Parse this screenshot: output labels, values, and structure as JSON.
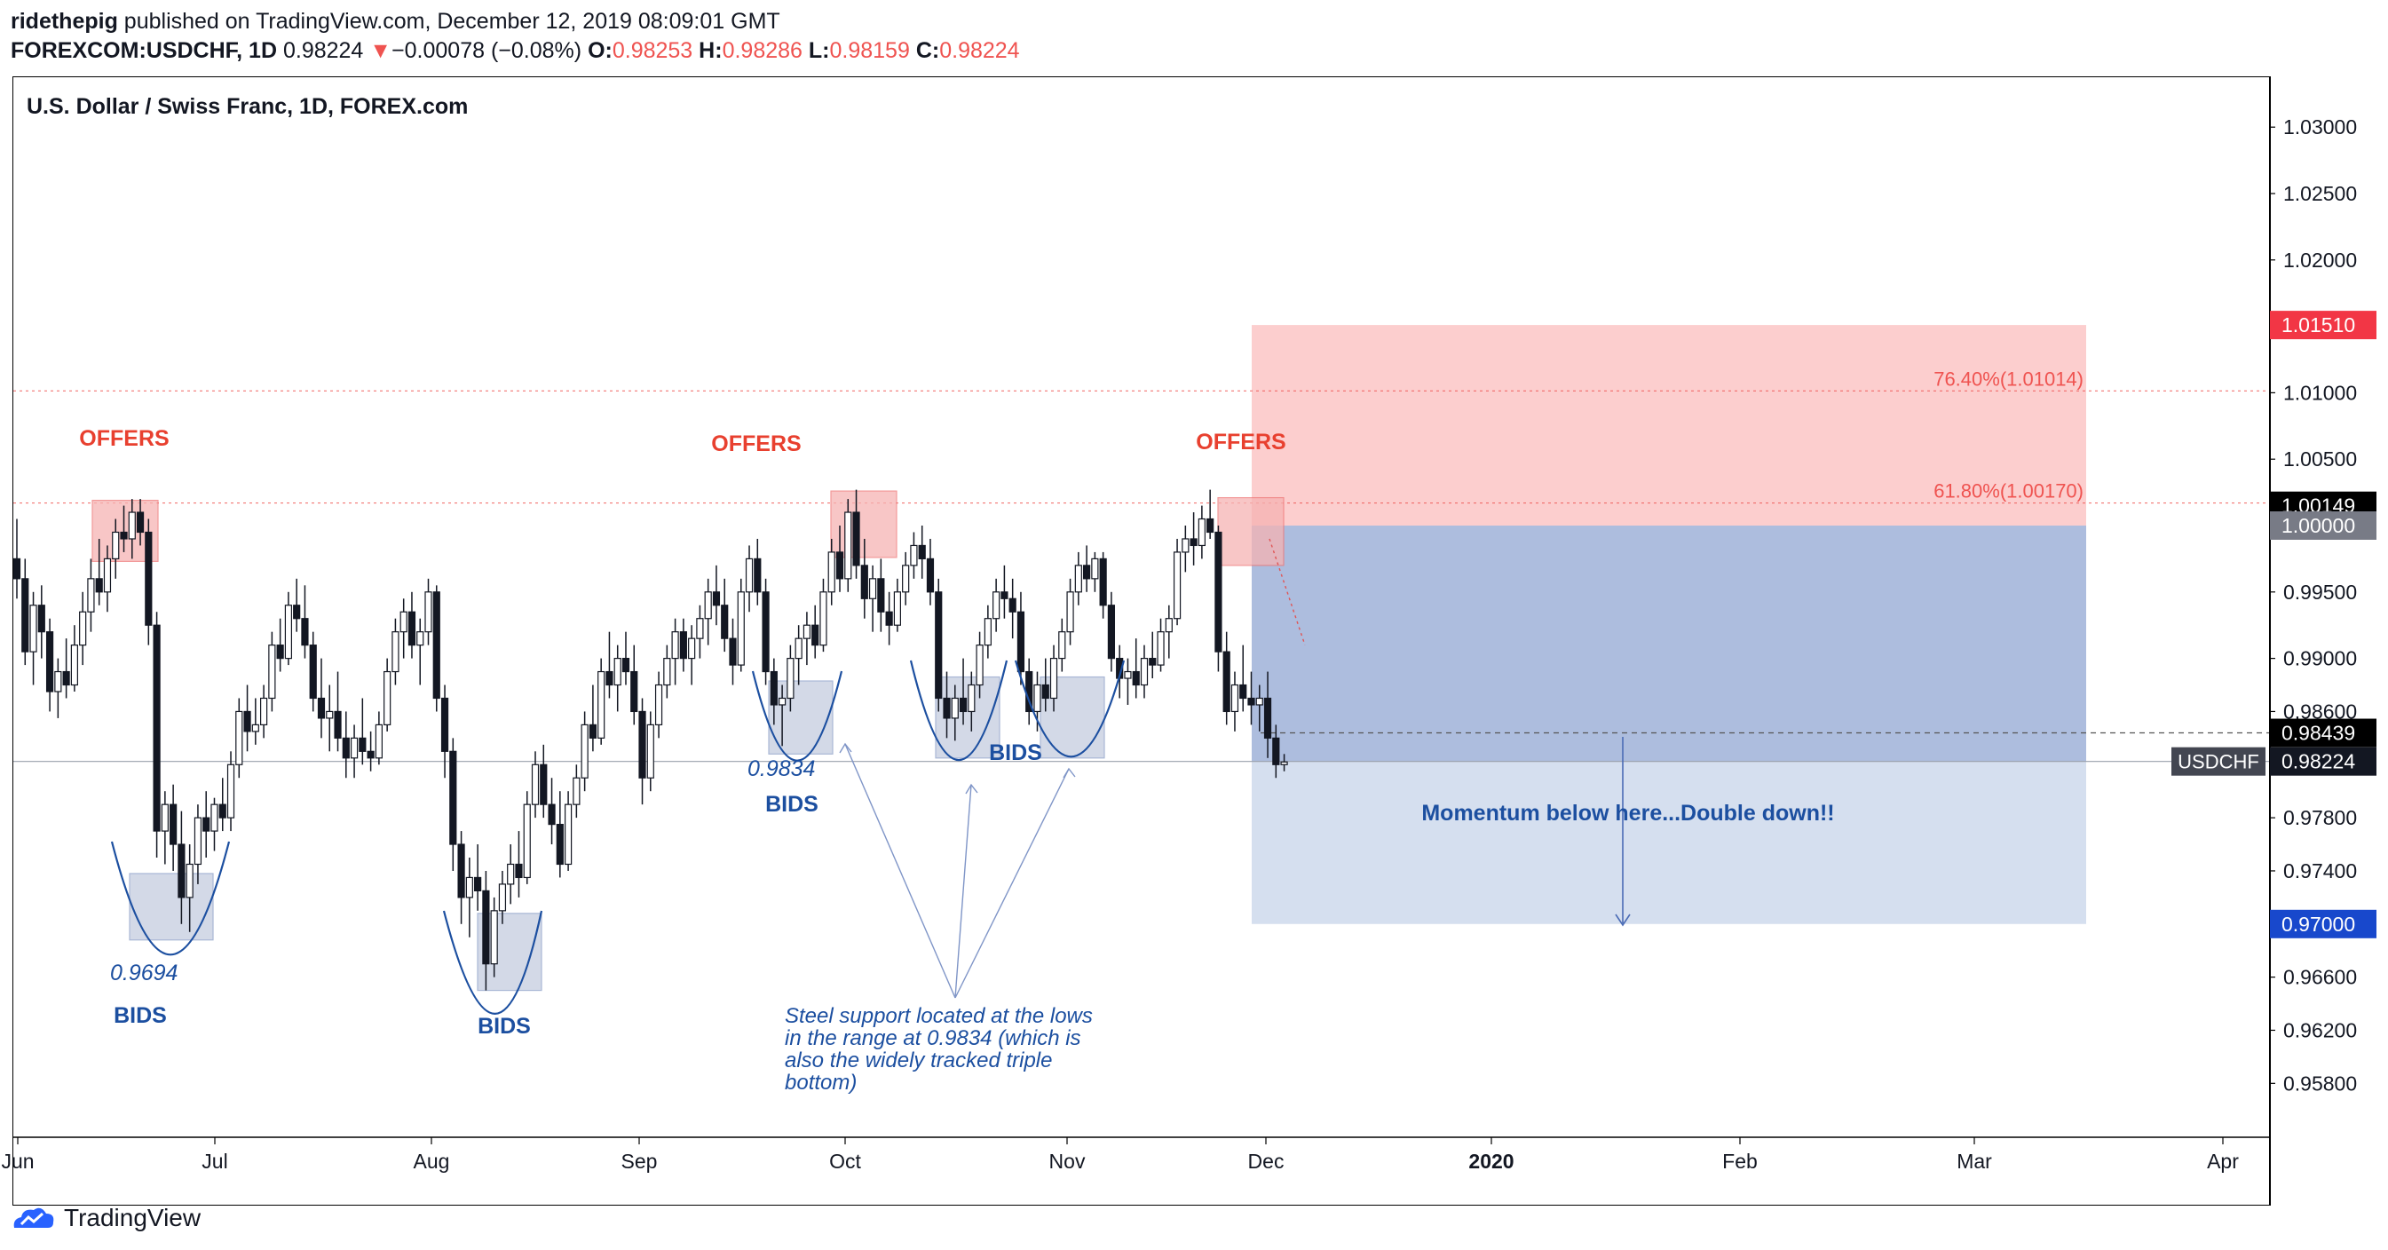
{
  "header": {
    "author": "ridethepig",
    "published_text": "published on TradingView.com, December 12, 2019 08:09:01 GMT",
    "symbol": "FOREXCOM:USDCHF, 1D",
    "last": "0.98224",
    "change_arrow": "▼",
    "change": "−0.00078 (−0.08%)",
    "o_label": "O:",
    "o": "0.98253",
    "h_label": "H:",
    "h": "0.98286",
    "l_label": "L:",
    "l": "0.98159",
    "c_label": "C:",
    "c": "0.98224"
  },
  "footer": {
    "brand": "TradingView"
  },
  "colors": {
    "down": "#ef5350",
    "red_zone": "#fbc5c5",
    "blue_zone": "#a9b9dc",
    "light_blue_zone": "#d3ddee",
    "annotation_blue": "#1c4fa0",
    "annotation_red": "#e8402f",
    "box_blue": "#c5cde0",
    "box_red": "#f6b3b3"
  },
  "chart_data": {
    "type": "candlestick",
    "title": "U.S. Dollar / Swiss Franc, 1D, FOREX.com",
    "ylim": [
      0.9543,
      1.0338
    ],
    "y_ticks": [
      "1.03000",
      "1.02500",
      "1.02000",
      "1.01000",
      "1.00500",
      "0.99500",
      "0.99000",
      "0.98600",
      "0.97800",
      "0.97400",
      "0.96600",
      "0.96200",
      "0.95800"
    ],
    "x_ticks": [
      "Jun",
      "Jul",
      "Aug",
      "Sep",
      "Oct",
      "Nov",
      "Dec",
      "2020",
      "Feb",
      "Mar",
      "Apr"
    ],
    "price_labels": [
      {
        "text": "1.01510",
        "value": 1.0151,
        "bg": "#f23645",
        "fg": "#ffffff"
      },
      {
        "text": "1.00149",
        "value": 1.00149,
        "bg": "#000000",
        "fg": "#ffffff"
      },
      {
        "text": "1.00000",
        "value": 1.0,
        "bg": "#787b86",
        "fg": "#ffffff"
      },
      {
        "text": "0.98439",
        "value": 0.98439,
        "bg": "#000000",
        "fg": "#ffffff"
      },
      {
        "text": "0.98224",
        "value": 0.98224,
        "bg": "#131722",
        "fg": "#ffffff"
      },
      {
        "text": "0.97000",
        "value": 0.97,
        "bg": "#1848cc",
        "fg": "#ffffff"
      }
    ],
    "symbol_tag": "USDCHF",
    "fib_levels": [
      {
        "text": "76.40%(1.01014)",
        "value": 1.01014
      },
      {
        "text": "61.80%(1.00170)",
        "value": 1.0017
      }
    ],
    "zones": {
      "stop": {
        "top": 1.0151,
        "bottom": 1.0
      },
      "profit_1": {
        "top": 1.0,
        "bottom": 0.98224
      },
      "profit_2": {
        "top": 0.98224,
        "bottom": 0.97
      },
      "entry": 0.98439
    },
    "annotations": {
      "offers": [
        "OFFERS",
        "OFFERS",
        "OFFERS"
      ],
      "bids": [
        "BIDS",
        "BIDS",
        "BIDS",
        "BIDS"
      ],
      "low_1": "0.9694",
      "low_2": "0.9834",
      "momentum": "Momentum below here...Double down!!",
      "note_lines": [
        "Steel support located at the lows",
        "in the range at 0.9834 (which is",
        "also the widely tracked triple",
        "bottom)"
      ]
    },
    "candles": [
      [
        0.9975,
        1.0005,
        0.9945,
        0.996
      ],
      [
        0.996,
        0.9975,
        0.9895,
        0.9905
      ],
      [
        0.9905,
        0.995,
        0.988,
        0.994
      ],
      [
        0.994,
        0.9955,
        0.99,
        0.992
      ],
      [
        0.992,
        0.993,
        0.986,
        0.9875
      ],
      [
        0.9875,
        0.99,
        0.9855,
        0.989
      ],
      [
        0.989,
        0.9915,
        0.987,
        0.988
      ],
      [
        0.988,
        0.9925,
        0.9875,
        0.991
      ],
      [
        0.991,
        0.995,
        0.9895,
        0.9935
      ],
      [
        0.9935,
        0.9975,
        0.992,
        0.996
      ],
      [
        0.996,
        0.999,
        0.994,
        0.995
      ],
      [
        0.995,
        0.9985,
        0.9935,
        0.9975
      ],
      [
        0.9975,
        1.0005,
        0.996,
        0.9995
      ],
      [
        0.9995,
        1.0015,
        0.998,
        0.999
      ],
      [
        0.999,
        1.002,
        0.9975,
        1.001
      ],
      [
        1.001,
        1.002,
        0.9985,
        0.9995
      ],
      [
        0.9995,
        1.0005,
        0.991,
        0.9925
      ],
      [
        0.9925,
        0.9935,
        0.975,
        0.977
      ],
      [
        0.977,
        0.98,
        0.9745,
        0.979
      ],
      [
        0.979,
        0.9805,
        0.974,
        0.976
      ],
      [
        0.976,
        0.9785,
        0.97,
        0.972
      ],
      [
        0.972,
        0.976,
        0.9694,
        0.9745
      ],
      [
        0.9745,
        0.979,
        0.973,
        0.978
      ],
      [
        0.978,
        0.98,
        0.975,
        0.977
      ],
      [
        0.977,
        0.9795,
        0.9755,
        0.979
      ],
      [
        0.979,
        0.981,
        0.977,
        0.978
      ],
      [
        0.978,
        0.983,
        0.977,
        0.982
      ],
      [
        0.982,
        0.987,
        0.981,
        0.986
      ],
      [
        0.986,
        0.988,
        0.983,
        0.9845
      ],
      [
        0.9845,
        0.987,
        0.9835,
        0.985
      ],
      [
        0.985,
        0.988,
        0.984,
        0.987
      ],
      [
        0.987,
        0.992,
        0.986,
        0.991
      ],
      [
        0.991,
        0.993,
        0.989,
        0.99
      ],
      [
        0.99,
        0.995,
        0.9895,
        0.994
      ],
      [
        0.994,
        0.996,
        0.992,
        0.993
      ],
      [
        0.993,
        0.9955,
        0.99,
        0.991
      ],
      [
        0.991,
        0.992,
        0.986,
        0.987
      ],
      [
        0.987,
        0.99,
        0.984,
        0.9855
      ],
      [
        0.9855,
        0.988,
        0.983,
        0.986
      ],
      [
        0.986,
        0.989,
        0.983,
        0.984
      ],
      [
        0.984,
        0.986,
        0.981,
        0.9825
      ],
      [
        0.9825,
        0.985,
        0.981,
        0.984
      ],
      [
        0.984,
        0.987,
        0.982,
        0.983
      ],
      [
        0.983,
        0.9845,
        0.9815,
        0.9825
      ],
      [
        0.9825,
        0.986,
        0.982,
        0.985
      ],
      [
        0.985,
        0.99,
        0.9845,
        0.989
      ],
      [
        0.989,
        0.993,
        0.988,
        0.992
      ],
      [
        0.992,
        0.9945,
        0.99,
        0.9935
      ],
      [
        0.9935,
        0.995,
        0.99,
        0.991
      ],
      [
        0.991,
        0.993,
        0.988,
        0.992
      ],
      [
        0.992,
        0.996,
        0.991,
        0.995
      ],
      [
        0.995,
        0.9955,
        0.986,
        0.987
      ],
      [
        0.987,
        0.988,
        0.981,
        0.983
      ],
      [
        0.983,
        0.984,
        0.974,
        0.976
      ],
      [
        0.976,
        0.977,
        0.97,
        0.972
      ],
      [
        0.972,
        0.975,
        0.969,
        0.9735
      ],
      [
        0.9735,
        0.976,
        0.971,
        0.9725
      ],
      [
        0.9725,
        0.974,
        0.965,
        0.967
      ],
      [
        0.967,
        0.972,
        0.966,
        0.971
      ],
      [
        0.971,
        0.974,
        0.97,
        0.973
      ],
      [
        0.973,
        0.976,
        0.9715,
        0.9745
      ],
      [
        0.9745,
        0.977,
        0.972,
        0.9735
      ],
      [
        0.9735,
        0.98,
        0.973,
        0.979
      ],
      [
        0.979,
        0.983,
        0.978,
        0.982
      ],
      [
        0.982,
        0.9835,
        0.978,
        0.979
      ],
      [
        0.979,
        0.981,
        0.976,
        0.9775
      ],
      [
        0.9775,
        0.98,
        0.9735,
        0.9745
      ],
      [
        0.9745,
        0.98,
        0.974,
        0.979
      ],
      [
        0.979,
        0.982,
        0.978,
        0.981
      ],
      [
        0.981,
        0.986,
        0.98,
        0.985
      ],
      [
        0.985,
        0.988,
        0.983,
        0.984
      ],
      [
        0.984,
        0.99,
        0.9835,
        0.989
      ],
      [
        0.989,
        0.992,
        0.987,
        0.988
      ],
      [
        0.988,
        0.991,
        0.986,
        0.99
      ],
      [
        0.99,
        0.992,
        0.988,
        0.989
      ],
      [
        0.989,
        0.991,
        0.985,
        0.986
      ],
      [
        0.986,
        0.987,
        0.979,
        0.981
      ],
      [
        0.981,
        0.986,
        0.98,
        0.985
      ],
      [
        0.985,
        0.989,
        0.984,
        0.988
      ],
      [
        0.988,
        0.991,
        0.987,
        0.99
      ],
      [
        0.99,
        0.993,
        0.988,
        0.992
      ],
      [
        0.992,
        0.993,
        0.989,
        0.99
      ],
      [
        0.99,
        0.9925,
        0.988,
        0.9915
      ],
      [
        0.9915,
        0.994,
        0.99,
        0.993
      ],
      [
        0.993,
        0.996,
        0.991,
        0.995
      ],
      [
        0.995,
        0.997,
        0.9925,
        0.994
      ],
      [
        0.994,
        0.996,
        0.9905,
        0.9915
      ],
      [
        0.9915,
        0.993,
        0.988,
        0.9895
      ],
      [
        0.9895,
        0.996,
        0.989,
        0.995
      ],
      [
        0.995,
        0.9985,
        0.9935,
        0.9975
      ],
      [
        0.9975,
        0.999,
        0.994,
        0.995
      ],
      [
        0.995,
        0.996,
        0.988,
        0.989
      ],
      [
        0.989,
        0.99,
        0.985,
        0.9865
      ],
      [
        0.9865,
        0.988,
        0.9834,
        0.987
      ],
      [
        0.987,
        0.991,
        0.986,
        0.99
      ],
      [
        0.99,
        0.9925,
        0.988,
        0.9915
      ],
      [
        0.9915,
        0.9935,
        0.9895,
        0.9925
      ],
      [
        0.9925,
        0.994,
        0.99,
        0.991
      ],
      [
        0.991,
        0.996,
        0.9905,
        0.995
      ],
      [
        0.995,
        0.999,
        0.994,
        0.998
      ],
      [
        0.998,
        1.0,
        0.995,
        0.996
      ],
      [
        0.996,
        1.002,
        0.995,
        1.001
      ],
      [
        1.001,
        1.0027,
        0.996,
        0.997
      ],
      [
        0.997,
        0.999,
        0.993,
        0.9945
      ],
      [
        0.9945,
        0.997,
        0.992,
        0.996
      ],
      [
        0.996,
        0.9975,
        0.992,
        0.9935
      ],
      [
        0.9935,
        0.995,
        0.991,
        0.9925
      ],
      [
        0.9925,
        0.996,
        0.992,
        0.995
      ],
      [
        0.995,
        0.998,
        0.994,
        0.997
      ],
      [
        0.997,
        0.9995,
        0.996,
        0.9985
      ],
      [
        0.9985,
        1.0,
        0.996,
        0.9975
      ],
      [
        0.9975,
        0.999,
        0.994,
        0.995
      ],
      [
        0.995,
        0.996,
        0.986,
        0.987
      ],
      [
        0.987,
        0.989,
        0.984,
        0.9855
      ],
      [
        0.9855,
        0.988,
        0.9838,
        0.987
      ],
      [
        0.987,
        0.99,
        0.985,
        0.986
      ],
      [
        0.986,
        0.989,
        0.9845,
        0.988
      ],
      [
        0.988,
        0.992,
        0.987,
        0.991
      ],
      [
        0.991,
        0.994,
        0.99,
        0.993
      ],
      [
        0.993,
        0.996,
        0.992,
        0.995
      ],
      [
        0.995,
        0.997,
        0.993,
        0.9945
      ],
      [
        0.9945,
        0.996,
        0.9915,
        0.9935
      ],
      [
        0.9935,
        0.995,
        0.988,
        0.989
      ],
      [
        0.989,
        0.99,
        0.985,
        0.986
      ],
      [
        0.986,
        0.989,
        0.9845,
        0.988
      ],
      [
        0.988,
        0.99,
        0.986,
        0.987
      ],
      [
        0.987,
        0.991,
        0.986,
        0.99
      ],
      [
        0.99,
        0.993,
        0.989,
        0.992
      ],
      [
        0.992,
        0.996,
        0.991,
        0.995
      ],
      [
        0.995,
        0.998,
        0.994,
        0.997
      ],
      [
        0.997,
        0.9985,
        0.995,
        0.996
      ],
      [
        0.996,
        0.998,
        0.995,
        0.9975
      ],
      [
        0.9975,
        0.998,
        0.993,
        0.994
      ],
      [
        0.994,
        0.995,
        0.989,
        0.99
      ],
      [
        0.99,
        0.991,
        0.987,
        0.9885
      ],
      [
        0.9885,
        0.99,
        0.9865,
        0.989
      ],
      [
        0.989,
        0.9915,
        0.987,
        0.988
      ],
      [
        0.988,
        0.991,
        0.987,
        0.99
      ],
      [
        0.99,
        0.992,
        0.9885,
        0.9895
      ],
      [
        0.9895,
        0.993,
        0.989,
        0.992
      ],
      [
        0.992,
        0.994,
        0.99,
        0.993
      ],
      [
        0.993,
        0.999,
        0.9925,
        0.998
      ],
      [
        0.998,
        1.0,
        0.9965,
        0.999
      ],
      [
        0.999,
        1.001,
        0.997,
        0.9985
      ],
      [
        0.9985,
        1.0015,
        0.9975,
        1.0005
      ],
      [
        1.0005,
        1.0027,
        0.999,
        0.9995
      ],
      [
        0.9995,
        1.0,
        0.989,
        0.9905
      ],
      [
        0.9905,
        0.992,
        0.985,
        0.986
      ],
      [
        0.986,
        0.989,
        0.9845,
        0.988
      ],
      [
        0.988,
        0.991,
        0.986,
        0.987
      ],
      [
        0.987,
        0.989,
        0.985,
        0.9865
      ],
      [
        0.9865,
        0.988,
        0.9845,
        0.987
      ],
      [
        0.987,
        0.989,
        0.9825,
        0.984
      ],
      [
        0.984,
        0.985,
        0.981,
        0.982
      ],
      [
        0.982,
        0.9828,
        0.9815,
        0.9822
      ]
    ]
  }
}
